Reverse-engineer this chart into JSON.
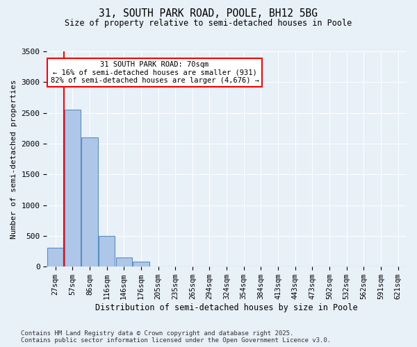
{
  "title_line1": "31, SOUTH PARK ROAD, POOLE, BH12 5BG",
  "title_line2": "Size of property relative to semi-detached houses in Poole",
  "xlabel": "Distribution of semi-detached houses by size in Poole",
  "ylabel": "Number of semi-detached properties",
  "bins": [
    "27sqm",
    "57sqm",
    "86sqm",
    "116sqm",
    "146sqm",
    "176sqm",
    "205sqm",
    "235sqm",
    "265sqm",
    "294sqm",
    "324sqm",
    "354sqm",
    "384sqm",
    "413sqm",
    "443sqm",
    "473sqm",
    "502sqm",
    "532sqm",
    "562sqm",
    "591sqm",
    "621sqm"
  ],
  "values": [
    310,
    2550,
    2100,
    500,
    150,
    80,
    5,
    0,
    0,
    0,
    0,
    0,
    0,
    0,
    0,
    0,
    0,
    0,
    0,
    0,
    0
  ],
  "bar_color": "#aec6e8",
  "bar_edge_color": "#5a8fc0",
  "red_line_x": 0.5,
  "annotation_title": "31 SOUTH PARK ROAD: 70sqm",
  "annotation_line2": "← 16% of semi-detached houses are smaller (931)",
  "annotation_line3": "82% of semi-detached houses are larger (4,676) →",
  "annotation_box_color": "white",
  "annotation_box_edge_color": "red",
  "red_line_color": "red",
  "ylim": [
    0,
    3500
  ],
  "yticks": [
    0,
    500,
    1000,
    1500,
    2000,
    2500,
    3000,
    3500
  ],
  "bg_color": "#e8f0f8",
  "plot_bg_color": "#e8f0f8",
  "footer_line1": "Contains HM Land Registry data © Crown copyright and database right 2025.",
  "footer_line2": "Contains public sector information licensed under the Open Government Licence v3.0."
}
